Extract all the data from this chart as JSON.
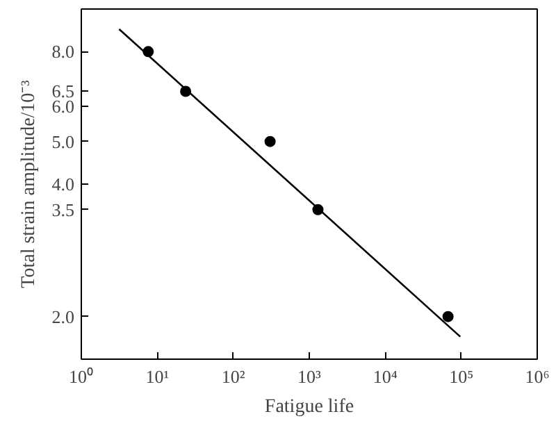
{
  "chart_data": {
    "type": "scatter",
    "xlabel": "Fatigue life",
    "ylabel": "Total strain amplitude/10⁻³",
    "log": "xy",
    "grid": false,
    "marker": "circle",
    "series": [
      {
        "color": "#000000",
        "x": [
          7.6,
          23.6,
          305,
          1300,
          67000
        ],
        "values": [
          8.0,
          6.5,
          5.0,
          3.5,
          2.0
        ]
      },
      {
        "type": "line",
        "color": "#000000",
        "line_style": "solid",
        "marker": "none",
        "x": [
          3.15,
          97000
        ],
        "values": [
          9.0,
          1.8
        ]
      }
    ],
    "xlim": [
      1,
      1000000
    ],
    "ylim": [
      1.6,
      10
    ],
    "xticks": [
      {
        "value": 1,
        "label": "10⁰"
      },
      {
        "value": 10,
        "label": "10¹"
      },
      {
        "value": 100,
        "label": "10²"
      },
      {
        "value": 1000,
        "label": "10³"
      },
      {
        "value": 10000,
        "label": "10⁴"
      },
      {
        "value": 100000,
        "label": "10⁵"
      },
      {
        "value": 1000000,
        "label": "10⁶"
      }
    ],
    "yticks": [
      {
        "value": 2,
        "label": "2.0"
      },
      {
        "value": 3.5,
        "label": "3.5"
      },
      {
        "value": 4,
        "label": "4.0"
      },
      {
        "value": 5,
        "label": "5.0"
      },
      {
        "value": 6,
        "label": "6.0"
      },
      {
        "value": 6.5,
        "label": "6.5"
      },
      {
        "value": 8,
        "label": "8.0"
      }
    ]
  }
}
